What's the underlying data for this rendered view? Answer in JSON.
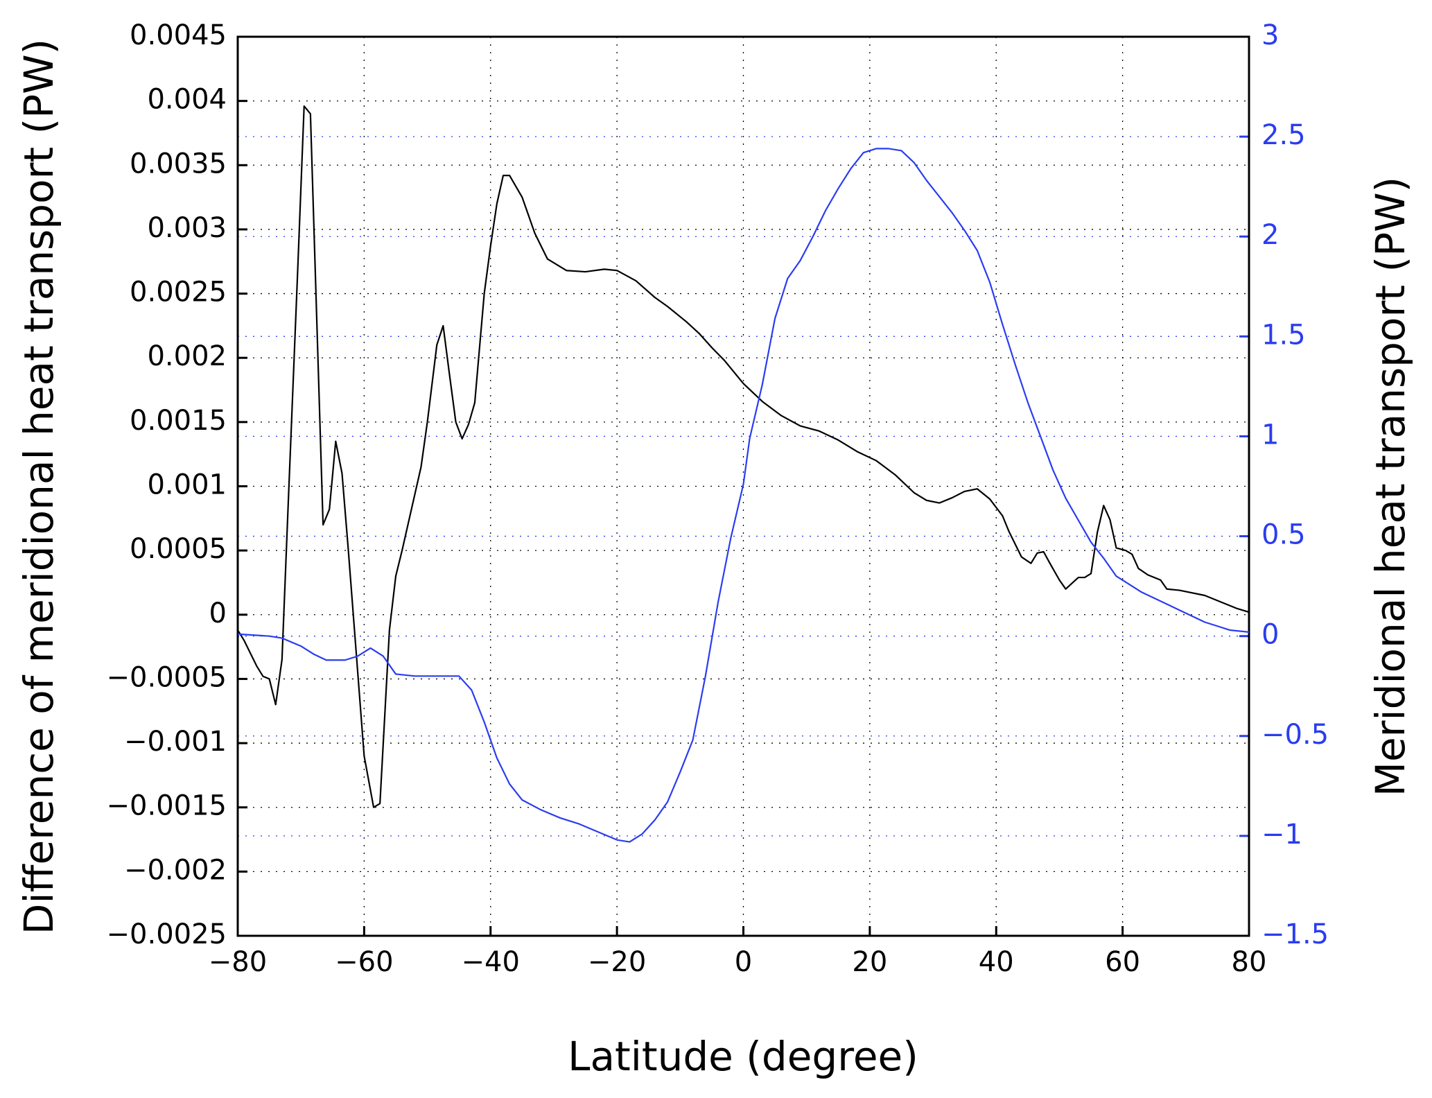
{
  "chart_data": {
    "type": "line",
    "xlabel": "Latitude (degree)",
    "ylabel": "Difference of meridional heat transport (PW)",
    "y2label": "Meridional heat transport (PW)",
    "xlim": [
      -80,
      80
    ],
    "xticks": [
      {
        "value": -80,
        "label": "−80"
      },
      {
        "value": -60,
        "label": "−60"
      },
      {
        "value": -40,
        "label": "−40"
      },
      {
        "value": -20,
        "label": "−20"
      },
      0,
      20,
      40,
      60,
      80
    ],
    "ylim": [
      -0.0025,
      0.0045
    ],
    "yticks": [
      {
        "value": -0.0025,
        "label": "−0.0025"
      },
      {
        "value": -0.002,
        "label": "−0.002"
      },
      {
        "value": -0.0015,
        "label": "−0.0015"
      },
      {
        "value": -0.001,
        "label": "−0.001"
      },
      {
        "value": -0.0005,
        "label": "−0.0005"
      },
      0,
      0.0005,
      0.001,
      0.0015,
      0.002,
      0.0025,
      0.003,
      0.0035,
      0.004,
      0.0045
    ],
    "y2lim": [
      -1.5,
      3
    ],
    "y2ticks": [
      {
        "value": -1.5,
        "label": "−1.5"
      },
      {
        "value": -1,
        "label": "−1"
      },
      {
        "value": -0.5,
        "label": "−0.5"
      },
      0,
      0.5,
      1,
      1.5,
      2,
      2.5,
      3
    ],
    "y2color": "#2a3cf0",
    "grid": true,
    "series": [
      {
        "color": "#000000",
        "x": [
          -80,
          -79,
          -77,
          -76,
          -75,
          -74,
          -73,
          -72,
          -70.5,
          -69.5,
          -68.5,
          -66.5,
          -65.5,
          -64.5,
          -63.5,
          -62.5,
          -60,
          -58.5,
          -57.5,
          -56,
          -55,
          -54,
          -51,
          -50,
          -48.5,
          -47.5,
          -46.5,
          -45.5,
          -44.5,
          -43.5,
          -42.5,
          -41,
          -40,
          -39,
          -38,
          -37,
          -35,
          -33,
          -31,
          -28,
          -25,
          -22,
          -20,
          -17,
          -14,
          -12,
          -9,
          -7,
          -5,
          -3,
          0,
          3,
          6,
          9,
          12,
          15,
          18,
          21,
          24,
          27,
          29,
          31,
          33,
          35,
          37,
          39,
          41,
          42,
          44,
          45.5,
          46.5,
          47.5,
          48.5,
          50,
          51,
          53,
          54,
          55,
          56,
          57,
          58,
          59,
          60.5,
          61.5,
          62.5,
          64,
          66,
          67,
          69,
          73,
          76,
          78,
          80
        ],
        "values": [
          -0.00012,
          -0.0002,
          -0.0004,
          -0.00048,
          -0.0005,
          -0.0007,
          -0.00035,
          0.00088,
          0.0027,
          0.00396,
          0.0039,
          0.0007,
          0.00082,
          0.00135,
          0.0011,
          0.0005,
          -0.0011,
          -0.0015,
          -0.00147,
          -0.00012,
          0.0003,
          0.0005,
          0.00115,
          0.0015,
          0.0021,
          0.00225,
          0.00187,
          0.0015,
          0.00137,
          0.00148,
          0.00165,
          0.0025,
          0.00287,
          0.0032,
          0.00342,
          0.00342,
          0.00325,
          0.00297,
          0.00277,
          0.00268,
          0.00267,
          0.00269,
          0.00268,
          0.0026,
          0.00247,
          0.0024,
          0.00228,
          0.00219,
          0.00208,
          0.00198,
          0.0018,
          0.00166,
          0.00155,
          0.00147,
          0.00143,
          0.00136,
          0.00127,
          0.0012,
          0.00109,
          0.00095,
          0.00089,
          0.00087,
          0.00091,
          0.00096,
          0.00098,
          0.0009,
          0.00077,
          0.00065,
          0.00045,
          0.0004,
          0.00048,
          0.00049,
          0.0004,
          0.00027,
          0.0002,
          0.00029,
          0.00029,
          0.00032,
          0.00064,
          0.00085,
          0.00074,
          0.00052,
          0.0005,
          0.00047,
          0.00036,
          0.00031,
          0.00027,
          0.0002,
          0.00019,
          0.00015,
          9e-05,
          5e-05,
          2e-05
        ]
      },
      {
        "color": "#2a3cf0",
        "axis": "y2",
        "x": [
          -80,
          -75,
          -73,
          -70,
          -68,
          -66,
          -63,
          -61,
          -59,
          -57,
          -55,
          -52,
          -48,
          -45,
          -43,
          -41,
          -39,
          -37,
          -35,
          -32,
          -29,
          -26,
          -23,
          -20,
          -18,
          -16,
          -14,
          -12,
          -10,
          -8,
          -6,
          -4,
          -2,
          0,
          1,
          3,
          5,
          7,
          9,
          11,
          13,
          15,
          17,
          19,
          21,
          23,
          25,
          27,
          29,
          31,
          33,
          35,
          37,
          39,
          41,
          43,
          45,
          47,
          49,
          51,
          53,
          55,
          57,
          59,
          61,
          63,
          65,
          67,
          69,
          71,
          73,
          75,
          77,
          80
        ],
        "values": [
          0.01,
          0,
          -0.01,
          -0.05,
          -0.09,
          -0.12,
          -0.12,
          -0.1,
          -0.06,
          -0.1,
          -0.19,
          -0.2,
          -0.2,
          -0.2,
          -0.27,
          -0.43,
          -0.61,
          -0.74,
          -0.82,
          -0.87,
          -0.91,
          -0.94,
          -0.98,
          -1.02,
          -1.03,
          -0.99,
          -0.92,
          -0.83,
          -0.68,
          -0.52,
          -0.2,
          0.17,
          0.49,
          0.76,
          0.99,
          1.26,
          1.59,
          1.79,
          1.88,
          2.0,
          2.13,
          2.24,
          2.34,
          2.42,
          2.44,
          2.44,
          2.43,
          2.37,
          2.28,
          2.2,
          2.12,
          2.03,
          1.93,
          1.77,
          1.56,
          1.36,
          1.17,
          1.0,
          0.83,
          0.69,
          0.58,
          0.47,
          0.39,
          0.3,
          0.26,
          0.22,
          0.19,
          0.16,
          0.13,
          0.1,
          0.07,
          0.05,
          0.03,
          0.02
        ]
      }
    ]
  }
}
